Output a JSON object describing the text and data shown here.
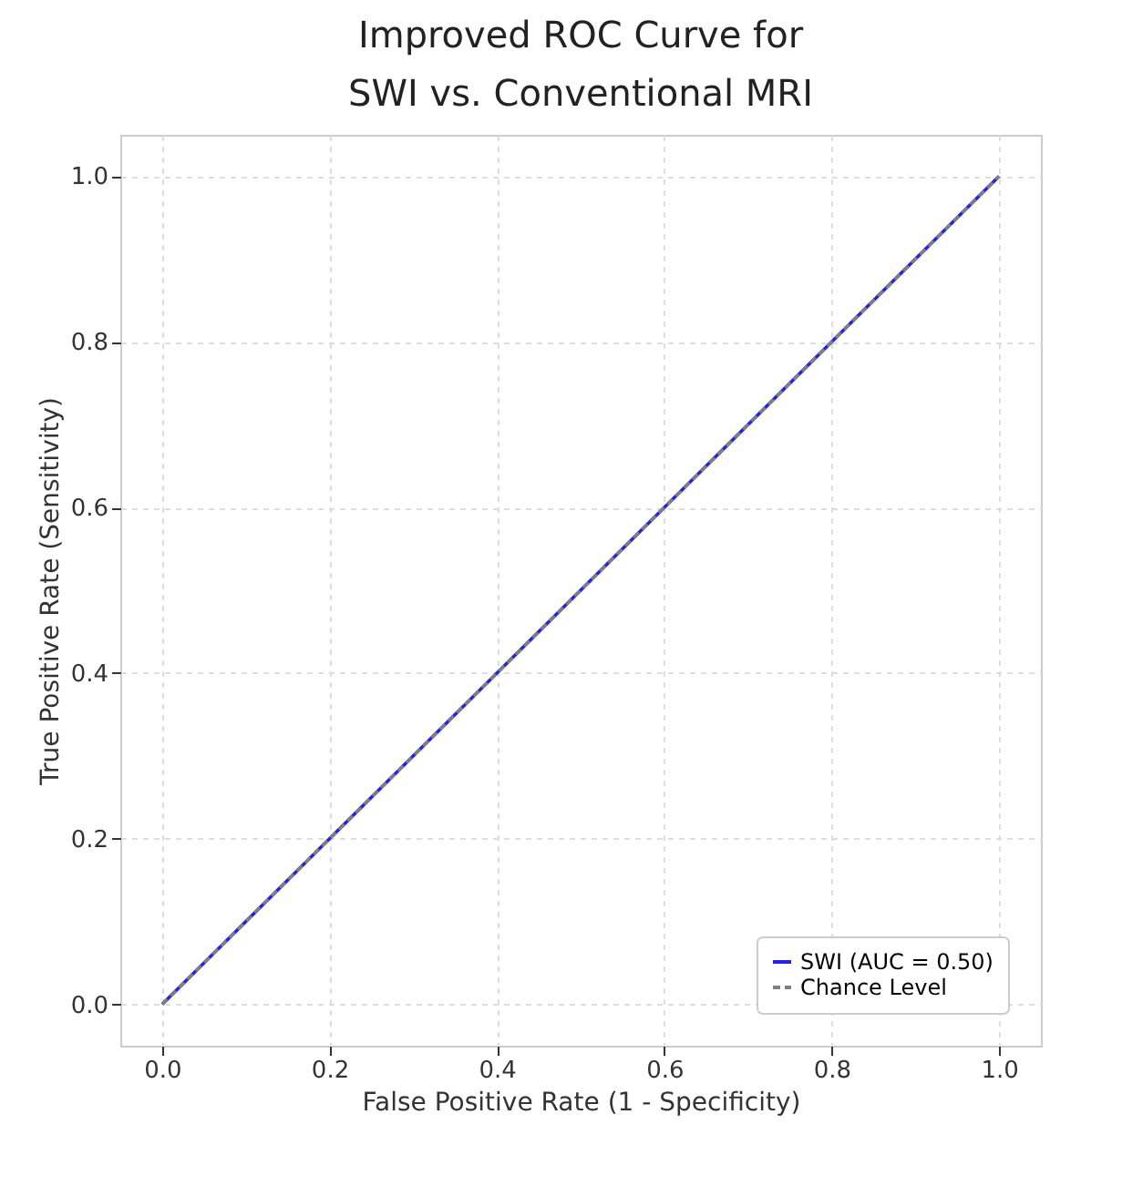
{
  "chart_data": {
    "type": "line",
    "title": "Improved ROC Curve for\nSWI vs. Conventional MRI",
    "xlabel": "False Positive Rate (1 - Specificity)",
    "ylabel": "True Positive Rate (Sensitivity)",
    "x": [
      0,
      1
    ],
    "series": [
      {
        "name": "SWI (AUC = 0.50)",
        "color": "#1f1fff",
        "values": [
          0,
          1
        ],
        "line_style": "solid"
      },
      {
        "name": "Chance Level",
        "color": "#7f7f7f",
        "values": [
          0,
          1
        ],
        "line_style": "dashed"
      }
    ],
    "xlim": [
      -0.05,
      1.05
    ],
    "ylim": [
      -0.05,
      1.05
    ],
    "xticks": [
      {
        "value": 0,
        "label": "0.0"
      },
      {
        "value": 0.2,
        "label": "0.2"
      },
      {
        "value": 0.4,
        "label": "0.4"
      },
      {
        "value": 0.6,
        "label": "0.6"
      },
      {
        "value": 0.8,
        "label": "0.8"
      },
      {
        "value": 1,
        "label": "1.0"
      }
    ],
    "yticks": [
      {
        "value": 0,
        "label": "0.0"
      },
      {
        "value": 0.2,
        "label": "0.2"
      },
      {
        "value": 0.4,
        "label": "0.4"
      },
      {
        "value": 0.6,
        "label": "0.6"
      },
      {
        "value": 0.8,
        "label": "0.8"
      },
      {
        "value": 1,
        "label": "1.0"
      }
    ],
    "grid": true,
    "legend": "bottom right",
    "marker": "none"
  }
}
